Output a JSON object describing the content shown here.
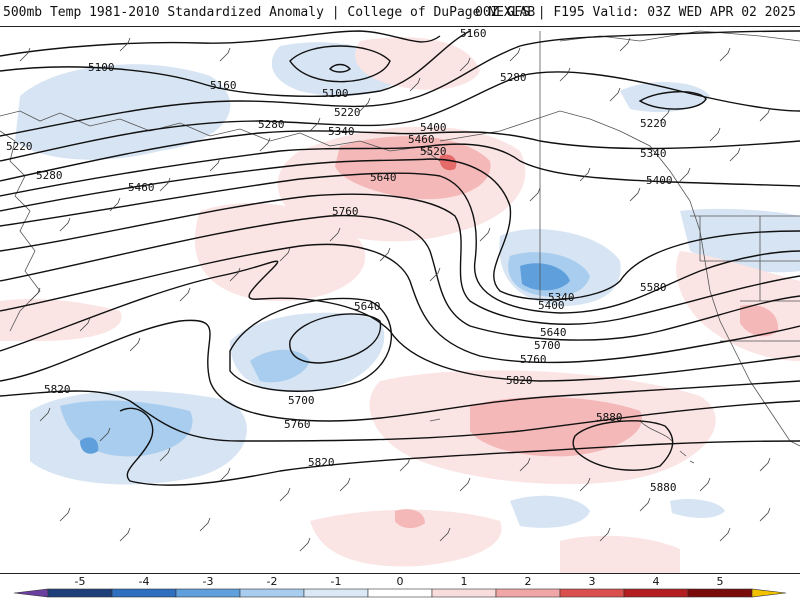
{
  "header": {
    "left_title": "500mb Temp 1981-2010 Standardized Anomaly | College of DuPage NEXLAB",
    "right_title": "00Z GFS | F195 Valid: 03Z WED APR 02 2025"
  },
  "contour_labels": [
    "5100",
    "5160",
    "5100",
    "5160",
    "5220",
    "5280",
    "5340",
    "5400",
    "5460",
    "5520",
    "5640",
    "5460",
    "5280",
    "5220",
    "5280",
    "5340",
    "5400",
    "5220",
    "5760",
    "5640",
    "5700",
    "5760",
    "5820",
    "5820",
    "5400",
    "5340",
    "5580",
    "5640",
    "5700",
    "5760",
    "5820",
    "5880",
    "5880"
  ],
  "colorbar": {
    "ticks": [
      "-5",
      "-4",
      "-3",
      "-2",
      "-1",
      "0",
      "1",
      "2",
      "3",
      "4",
      "5"
    ],
    "colors": [
      "#6a3fa0",
      "#1f3f7a",
      "#2f6fbf",
      "#5fa0dc",
      "#a9cdee",
      "#dbe9f6",
      "#ffffff",
      "#f9dcdc",
      "#f0a6a6",
      "#d9504f",
      "#b31e22",
      "#7a0b0b",
      "#f2c200"
    ]
  }
}
